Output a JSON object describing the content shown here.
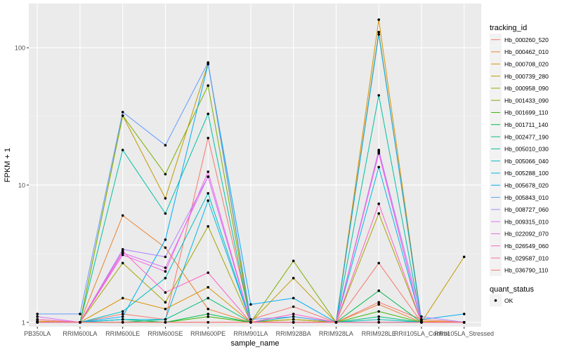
{
  "chart_data": {
    "type": "line",
    "title": "",
    "xlabel": "sample_name",
    "ylabel": "FPKM + 1",
    "y_scale": "log10",
    "ylim": [
      0.93,
      210
    ],
    "y_ticks": [
      {
        "value": 1,
        "label": "1"
      },
      {
        "value": 10,
        "label": "10"
      },
      {
        "value": 100,
        "label": "100"
      }
    ],
    "categories": [
      "PB350LA",
      "RRIM600LA",
      "RRIM600LE",
      "RRIM600SE",
      "RRIM600PE",
      "RRIM901LA",
      "RRIM928BA",
      "RRIM928LA",
      "RRIM928LE",
      "RRII105LA_Control",
      "RRII105LA_Stressed"
    ],
    "legend": {
      "title": "tracking_id",
      "position": "right",
      "entries": [
        "Hb_000260_520",
        "Hb_000462_010",
        "Hb_000708_020",
        "Hb_000739_280",
        "Hb_000958_090",
        "Hb_001433_090",
        "Hb_001699_110",
        "Hb_001711_140",
        "Hb_002477_190",
        "Hb_005010_030",
        "Hb_005066_040",
        "Hb_005288_100",
        "Hb_005678_020",
        "Hb_005843_010",
        "Hb_008727_060",
        "Hb_009315_010",
        "Hb_022092_070",
        "Hb_026549_060",
        "Hb_029587_010",
        "Hb_036790_110"
      ]
    },
    "shape_legend": {
      "title": "quant_status",
      "entries": [
        "OK"
      ]
    },
    "series": [
      {
        "name": "Hb_000260_520",
        "color": "#F8766D",
        "values": [
          1.0,
          1.0,
          1.15,
          1.05,
          22.0,
          1.05,
          1.3,
          1.0,
          1.4,
          1.05,
          1.0
        ]
      },
      {
        "name": "Hb_000462_010",
        "color": "#EA8331",
        "values": [
          1.0,
          1.0,
          6.0,
          3.5,
          1.25,
          1.0,
          1.1,
          1.0,
          1.35,
          1.0,
          1.0
        ]
      },
      {
        "name": "Hb_000708_020",
        "color": "#D89000",
        "values": [
          1.02,
          1.0,
          1.5,
          1.25,
          1.8,
          1.0,
          1.05,
          1.0,
          160,
          1.02,
          1.0
        ]
      },
      {
        "name": "Hb_000739_280",
        "color": "#C09B00",
        "values": [
          1.0,
          1.0,
          32.0,
          8.0,
          77.0,
          1.0,
          2.1,
          1.0,
          130,
          1.0,
          3.0
        ]
      },
      {
        "name": "Hb_000958_090",
        "color": "#A3A500",
        "values": [
          1.0,
          1.0,
          2.7,
          1.4,
          5.0,
          1.0,
          1.05,
          1.0,
          6.2,
          1.0,
          1.0
        ]
      },
      {
        "name": "Hb_001433_090",
        "color": "#7CAE00",
        "values": [
          1.0,
          1.0,
          32.0,
          12.0,
          53.0,
          1.0,
          2.8,
          1.0,
          1.0,
          1.0,
          1.0
        ]
      },
      {
        "name": "Hb_001699_110",
        "color": "#39B600",
        "values": [
          1.0,
          1.0,
          1.0,
          1.0,
          1.1,
          1.0,
          1.0,
          1.0,
          1.2,
          1.0,
          1.0
        ]
      },
      {
        "name": "Hb_001711_140",
        "color": "#00BB4E",
        "values": [
          1.0,
          1.0,
          1.05,
          1.0,
          1.15,
          1.0,
          1.0,
          1.0,
          1.7,
          1.0,
          1.0
        ]
      },
      {
        "name": "Hb_002477_190",
        "color": "#00BF7D",
        "values": [
          1.0,
          1.0,
          1.0,
          1.05,
          1.5,
          1.0,
          1.0,
          1.0,
          1.1,
          1.0,
          1.0
        ]
      },
      {
        "name": "Hb_005010_030",
        "color": "#00C1A3",
        "values": [
          1.0,
          1.0,
          18.0,
          6.2,
          33.0,
          1.0,
          1.0,
          1.0,
          45.0,
          1.0,
          1.0
        ]
      },
      {
        "name": "Hb_005066_040",
        "color": "#00BFC4",
        "values": [
          1.0,
          1.0,
          1.2,
          2.1,
          8.7,
          1.0,
          1.1,
          1.0,
          1.05,
          1.0,
          1.0
        ]
      },
      {
        "name": "Hb_005288_100",
        "color": "#00B9E3",
        "values": [
          1.0,
          1.0,
          1.05,
          1.05,
          7.7,
          1.0,
          1.0,
          1.0,
          13.5,
          1.0,
          1.0
        ]
      },
      {
        "name": "Hb_005678_020",
        "color": "#00ADFA",
        "values": [
          1.0,
          1.0,
          1.1,
          4.0,
          76.0,
          1.35,
          1.5,
          1.0,
          125,
          1.05,
          1.15
        ]
      },
      {
        "name": "Hb_005843_010",
        "color": "#619CFF",
        "values": [
          1.15,
          1.15,
          34.0,
          19.5,
          78.0,
          1.05,
          1.1,
          1.0,
          1.0,
          1.0,
          1.0
        ]
      },
      {
        "name": "Hb_008727_060",
        "color": "#AE87FF",
        "values": [
          1.05,
          1.0,
          3.4,
          3.0,
          11.5,
          1.0,
          1.0,
          1.0,
          18.0,
          1.1,
          1.0
        ]
      },
      {
        "name": "Hb_009315_010",
        "color": "#DB72FB",
        "values": [
          1.1,
          1.0,
          3.2,
          2.5,
          11.5,
          1.0,
          1.0,
          1.0,
          17.0,
          1.0,
          1.0
        ]
      },
      {
        "name": "Hb_022092_070",
        "color": "#F564E3",
        "values": [
          1.0,
          1.0,
          3.1,
          2.35,
          12.5,
          1.0,
          1.0,
          1.0,
          17.5,
          1.0,
          1.0
        ]
      },
      {
        "name": "Hb_026549_060",
        "color": "#FF61C3",
        "values": [
          1.0,
          1.0,
          3.3,
          1.65,
          2.3,
          1.0,
          1.15,
          1.0,
          7.3,
          1.0,
          1.0
        ]
      },
      {
        "name": "Hb_029587_010",
        "color": "#FF6C91",
        "values": [
          1.05,
          1.0,
          1.0,
          1.0,
          1.0,
          1.0,
          1.0,
          1.0,
          1.0,
          1.0,
          1.0
        ]
      },
      {
        "name": "Hb_036790_110",
        "color": "#F8766D",
        "values": [
          1.0,
          1.0,
          1.0,
          1.0,
          1.0,
          1.0,
          1.0,
          1.0,
          2.7,
          1.0,
          1.0
        ]
      }
    ]
  }
}
